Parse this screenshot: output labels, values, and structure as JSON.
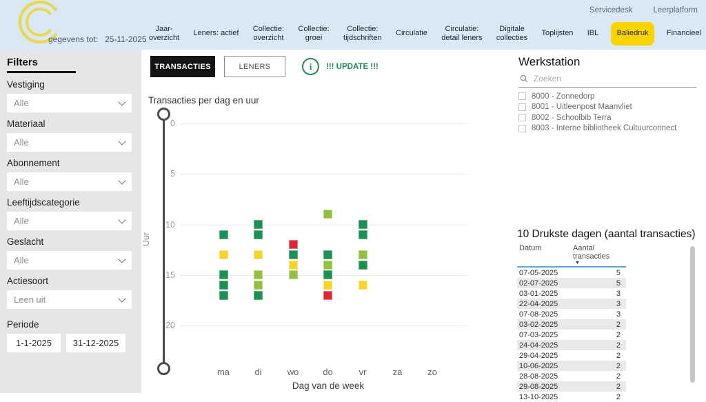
{
  "header": {
    "data_until_label": "gegevens tot:",
    "data_until_value": "25-11-2025",
    "links": [
      {
        "id": "servicedesk",
        "label": "Servicedesk"
      },
      {
        "id": "leerplatform",
        "label": "Leerplatform"
      }
    ],
    "tabs": [
      {
        "id": "jaar-overzicht",
        "label": "Jaar-\noverzicht",
        "active": false
      },
      {
        "id": "leners-actief",
        "label": "Leners: actief",
        "active": false
      },
      {
        "id": "collectie-overzicht",
        "label": "Collectie:\noverzicht",
        "active": false
      },
      {
        "id": "collectie-groei",
        "label": "Collectie:\ngroei",
        "active": false
      },
      {
        "id": "collectie-tijdschriften",
        "label": "Collectie:\ntijdschriften",
        "active": false
      },
      {
        "id": "circulatie",
        "label": "Circulatie",
        "active": false
      },
      {
        "id": "circulatie-detail-leners",
        "label": "Circulatie:\ndetail leners",
        "active": false
      },
      {
        "id": "digitale-collecties",
        "label": "Digitale\ncollecties",
        "active": false
      },
      {
        "id": "toplijsten",
        "label": "Toplijsten",
        "active": false
      },
      {
        "id": "ibl",
        "label": "IBL",
        "active": false
      },
      {
        "id": "baliedruk",
        "label": "Baliedruk",
        "active": true
      },
      {
        "id": "financieel",
        "label": "Financieel",
        "active": false
      }
    ]
  },
  "sidebar": {
    "title": "Filters",
    "filters": [
      {
        "id": "vestiging",
        "label": "Vestiging",
        "value": "Alle"
      },
      {
        "id": "materiaal",
        "label": "Materiaal",
        "value": "Alle"
      },
      {
        "id": "abonnement",
        "label": "Abonnement",
        "value": "Alle"
      },
      {
        "id": "leeftijdscategorie",
        "label": "Leeftijdscategorie",
        "value": "Alle"
      },
      {
        "id": "geslacht",
        "label": "Geslacht",
        "value": "Alle"
      },
      {
        "id": "actiesoort",
        "label": "Actiesoort",
        "value": "Leen uit"
      }
    ],
    "period": {
      "label": "Periode",
      "from": "1-1-2025",
      "to": "31-12-2025"
    }
  },
  "main": {
    "view_toggle": {
      "transactions": "TRANSACTIES",
      "borrowers": "LENERS"
    },
    "update_notice": "!!! UPDATE !!!"
  },
  "chart_data": {
    "type": "scatter",
    "title": "Transacties per dag en uur",
    "xlabel": "Dag van de week",
    "ylabel": "Uur",
    "x_categories": [
      "ma",
      "di",
      "wo",
      "do",
      "vr",
      "za",
      "zo"
    ],
    "y_ticks": [
      0,
      5,
      10,
      15,
      20
    ],
    "ylim": [
      0,
      24
    ],
    "y_axis_inverted": true,
    "grid": "dotted-horizontal",
    "marker_colors": {
      "dark_green": {
        "fill": "#1b9155",
        "stroke": "#63b584"
      },
      "light_green": {
        "fill": "#93c13f",
        "stroke": "#bcd983"
      },
      "yellow": {
        "fill": "#f7d42a",
        "stroke": "#fbe57d"
      },
      "red": {
        "fill": "#e02531",
        "stroke": "#ee767c"
      }
    },
    "points": [
      {
        "day": "ma",
        "hour": 11,
        "color": "dark_green"
      },
      {
        "day": "ma",
        "hour": 13,
        "color": "yellow"
      },
      {
        "day": "ma",
        "hour": 15,
        "color": "dark_green"
      },
      {
        "day": "ma",
        "hour": 16,
        "color": "dark_green"
      },
      {
        "day": "ma",
        "hour": 17,
        "color": "dark_green"
      },
      {
        "day": "di",
        "hour": 10,
        "color": "dark_green"
      },
      {
        "day": "di",
        "hour": 11,
        "color": "dark_green"
      },
      {
        "day": "di",
        "hour": 13,
        "color": "yellow"
      },
      {
        "day": "di",
        "hour": 15,
        "color": "light_green"
      },
      {
        "day": "di",
        "hour": 16,
        "color": "light_green"
      },
      {
        "day": "di",
        "hour": 17,
        "color": "dark_green"
      },
      {
        "day": "wo",
        "hour": 12,
        "color": "red"
      },
      {
        "day": "wo",
        "hour": 13,
        "color": "dark_green"
      },
      {
        "day": "wo",
        "hour": 14,
        "color": "yellow"
      },
      {
        "day": "wo",
        "hour": 15,
        "color": "light_green"
      },
      {
        "day": "do",
        "hour": 9,
        "color": "light_green"
      },
      {
        "day": "do",
        "hour": 13,
        "color": "dark_green"
      },
      {
        "day": "do",
        "hour": 14,
        "color": "light_green"
      },
      {
        "day": "do",
        "hour": 15,
        "color": "dark_green"
      },
      {
        "day": "do",
        "hour": 16,
        "color": "yellow"
      },
      {
        "day": "do",
        "hour": 17,
        "color": "red"
      },
      {
        "day": "vr",
        "hour": 10,
        "color": "dark_green"
      },
      {
        "day": "vr",
        "hour": 11,
        "color": "dark_green"
      },
      {
        "day": "vr",
        "hour": 13,
        "color": "light_green"
      },
      {
        "day": "vr",
        "hour": 14,
        "color": "dark_green"
      },
      {
        "day": "vr",
        "hour": 16,
        "color": "yellow"
      }
    ]
  },
  "workstation": {
    "title": "Werkstation",
    "search_placeholder": "Zoeken",
    "items": [
      {
        "label": "8000 - Zonnedorp",
        "checked": false
      },
      {
        "label": "8001 - Uitleenpost Maanvliet",
        "checked": false
      },
      {
        "label": "8002 - Schoolbib Terra",
        "checked": false
      },
      {
        "label": "8003 - Interne bibliotheek Cultuurconnect",
        "checked": false
      }
    ]
  },
  "busiest_table": {
    "title": "10 Drukste dagen (aantal transacties)",
    "columns": [
      "Datum",
      "Aantal transacties"
    ],
    "sort": {
      "column": "Aantal transacties",
      "direction": "desc"
    },
    "rows": [
      [
        "07-05-2025",
        "5"
      ],
      [
        "02-07-2025",
        "5"
      ],
      [
        "03-01-2025",
        "3"
      ],
      [
        "22-04-2025",
        "3"
      ],
      [
        "07-08-2025",
        "3"
      ],
      [
        "03-02-2025",
        "2"
      ],
      [
        "07-03-2025",
        "2"
      ],
      [
        "24-04-2025",
        "2"
      ],
      [
        "29-04-2025",
        "2"
      ],
      [
        "10-06-2025",
        "2"
      ],
      [
        "28-08-2025",
        "2"
      ],
      [
        "29-08-2025",
        "2"
      ],
      [
        "13-10-2025",
        "2"
      ]
    ]
  },
  "colors": {
    "topbar_bg": "#d9e8f5",
    "sidebar_bg": "#e6e6e6",
    "active_tab_bg": "#fdd400",
    "logo_yellow": "#ecd750",
    "update_green": "#1e8a57",
    "table_header_underline": "#5ea7d8"
  }
}
